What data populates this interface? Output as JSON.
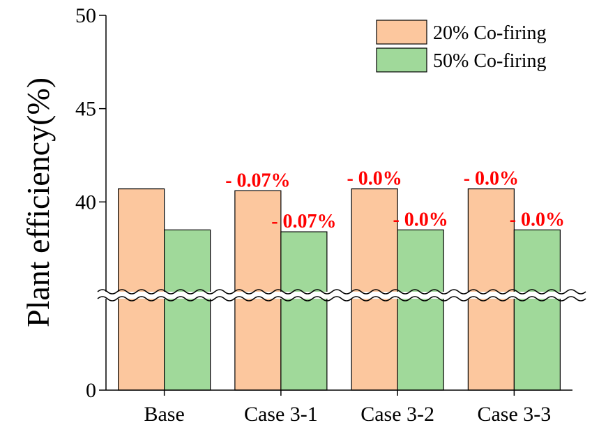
{
  "chart_data": {
    "type": "bar",
    "ylabel": "Plant efficiency(%)",
    "xlabel": "",
    "categories": [
      "Base",
      "Case 3-1",
      "Case 3-2",
      "Case 3-3"
    ],
    "series": [
      {
        "name": "20% Co-firing",
        "color": "#fcc79e",
        "values": [
          40.7,
          40.6,
          40.7,
          40.7
        ]
      },
      {
        "name": "50% Co-firing",
        "color": "#a0d99a",
        "values": [
          38.5,
          38.4,
          38.5,
          38.5
        ]
      }
    ],
    "y_ticks": [
      "0",
      "40",
      "45",
      "50"
    ],
    "ylim": [
      0,
      50
    ],
    "axis_break": {
      "from": 0,
      "to": 35
    },
    "annotations": [
      {
        "category": "Case 3-1",
        "series": "20% Co-firing",
        "text": "- 0.07%"
      },
      {
        "category": "Case 3-1",
        "series": "50% Co-firing",
        "text": "- 0.07%"
      },
      {
        "category": "Case 3-2",
        "series": "20% Co-firing",
        "text": "- 0.0%"
      },
      {
        "category": "Case 3-2",
        "series": "50% Co-firing",
        "text": "- 0.0%"
      },
      {
        "category": "Case 3-3",
        "series": "20% Co-firing",
        "text": "- 0.0%"
      },
      {
        "category": "Case 3-3",
        "series": "50% Co-firing",
        "text": "- 0.0%"
      }
    ],
    "legend_position": "top-right",
    "grid": false,
    "annotation_color": "#ff0000"
  }
}
